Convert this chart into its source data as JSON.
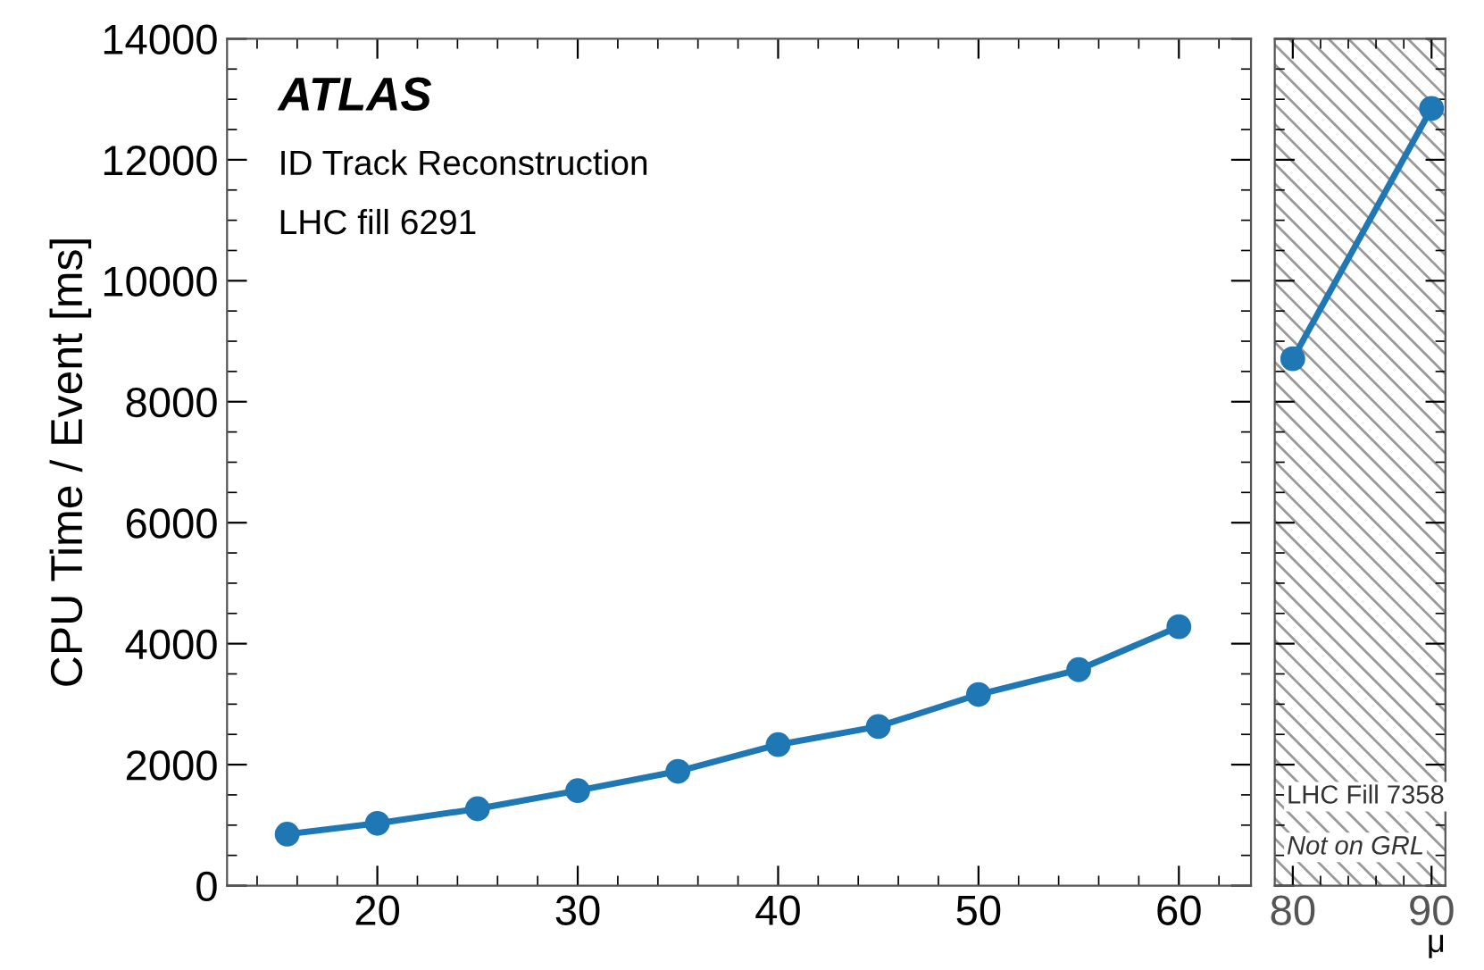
{
  "chart_data": [
    {
      "type": "line",
      "ylabel": "CPU Time / Event [ms]",
      "annotations": [
        "ATLAS",
        "ID Track Reconstruction",
        "LHC fill 6291"
      ],
      "x": [
        15.5,
        20,
        25,
        30,
        35,
        40,
        45,
        50,
        55,
        60
      ],
      "series": [
        {
          "color": "#1f77b4",
          "values": [
            850,
            1030,
            1270,
            1570,
            1890,
            2330,
            2630,
            3160,
            3570,
            4280
          ]
        }
      ],
      "xlim": [
        12.5,
        63.6
      ],
      "xticks": [
        20,
        30,
        40,
        50,
        60
      ],
      "ylim": [
        0,
        14000
      ],
      "yticks": [
        0,
        2000,
        4000,
        6000,
        8000,
        10000,
        12000,
        14000
      ],
      "marker": "circle",
      "line_style": "solid",
      "grid": false
    },
    {
      "type": "line",
      "xlabel": "μ",
      "annotations": [
        "LHC Fill 7358",
        "Not on GRL"
      ],
      "x": [
        80,
        90
      ],
      "series": [
        {
          "color": "#1f77b4",
          "values": [
            8710,
            12850
          ]
        }
      ],
      "xlim": [
        78.7,
        91
      ],
      "xticks": [
        80,
        90
      ],
      "ylim": [
        0,
        14000
      ],
      "yticks": [
        0,
        2000,
        4000,
        6000,
        8000,
        10000,
        12000,
        14000
      ],
      "bands": [
        {
          "axis": "x",
          "from": 78.7,
          "to": 91,
          "color": "#999999"
        }
      ],
      "tick_labels": "x",
      "marker": "circle",
      "line_style": "solid",
      "grid": false
    }
  ]
}
